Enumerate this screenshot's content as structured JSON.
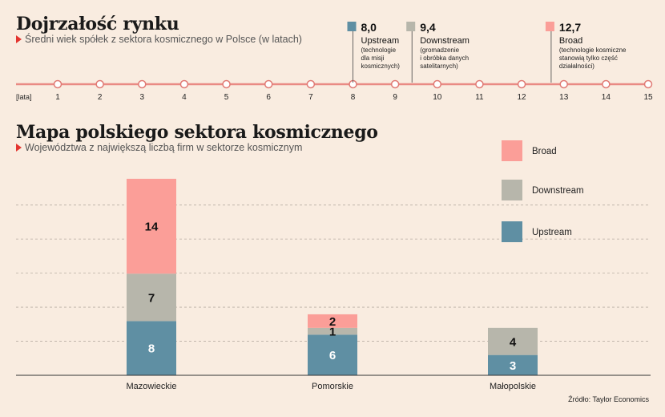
{
  "timeline": {
    "title": "Dojrzałość rynku",
    "subtitle": "Średni wiek spółek z sektora kosmicznego w Polsce (w latach)",
    "axis_label": "[lata]",
    "ticks": [
      1,
      2,
      3,
      4,
      5,
      6,
      7,
      8,
      9,
      10,
      11,
      12,
      13,
      14,
      15
    ],
    "markers": [
      {
        "value": 8.0,
        "value_text": "8,0",
        "name": "Upstream",
        "color": "#5f8fa3",
        "note": [
          "(technologie",
          "dla misji",
          "kosmicznych)"
        ]
      },
      {
        "value": 9.4,
        "value_text": "9,4",
        "name": "Downstream",
        "color": "#b7b6ab",
        "note": [
          "(gromadzenie",
          "i obróbka danych",
          "satelitarnych)"
        ]
      },
      {
        "value": 12.7,
        "value_text": "12,7",
        "name": "Broad",
        "color": "#fb9e98",
        "note": [
          "(technologie kosmiczne",
          "stanowią tylko część",
          "działalności)"
        ]
      }
    ]
  },
  "chart": {
    "title": "Mapa polskiego sektora kosmicznego",
    "subtitle": "Województwa z największą liczbą firm w sektorze kosmicznym",
    "source": "Źródło: Taylor Economics"
  },
  "chart_data": {
    "type": "bar",
    "stacked": true,
    "categories": [
      "Mazowieckie",
      "Pomorskie",
      "Małopolskie"
    ],
    "series": [
      {
        "name": "Upstream",
        "color": "#5f8fa3",
        "values": [
          8,
          6,
          3
        ]
      },
      {
        "name": "Downstream",
        "color": "#b7b6ab",
        "values": [
          7,
          1,
          4
        ]
      },
      {
        "name": "Broad",
        "color": "#fb9e98",
        "values": [
          14,
          2,
          0
        ]
      }
    ],
    "legend": [
      "Broad",
      "Downstream",
      "Upstream"
    ],
    "ylim": [
      0,
      30
    ],
    "grid": true,
    "legend_position": "top-right"
  }
}
